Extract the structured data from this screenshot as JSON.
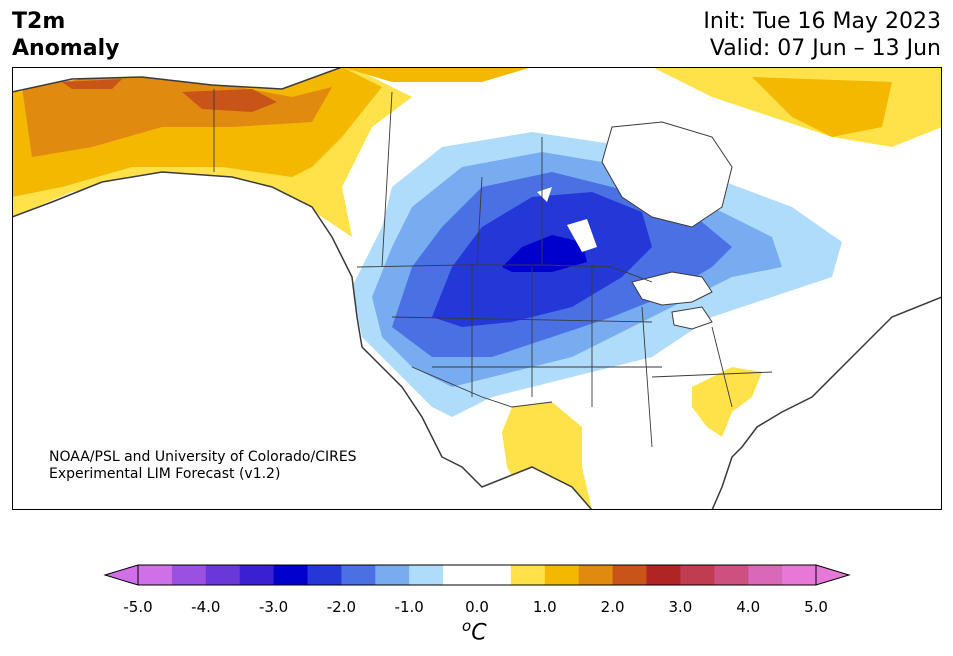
{
  "title": {
    "left_line1": "T2m",
    "left_line2": "Anomaly",
    "init": "Init: Tue 16 May 2023",
    "valid": "Valid: 07 Jun – 13 Jun"
  },
  "credit": {
    "line1": "NOAA/PSL and University of Colorado/CIRES",
    "line2": "Experimental LIM Forecast (v1.2)"
  },
  "map": {
    "region": "North America",
    "colors": {
      "ocean": "#ffffff",
      "coast": "#3a3a3a"
    }
  },
  "colorbar": {
    "unit_base": "C",
    "unit_sup": "o",
    "ticks": [
      "-5.0",
      "-4.0",
      "-3.0",
      "-2.0",
      "-1.0",
      "0.0",
      "1.0",
      "2.0",
      "3.0",
      "4.0",
      "5.0"
    ],
    "colors": [
      "#d070e8",
      "#9a50e0",
      "#6a38d8",
      "#3a20d0",
      "#0000cc",
      "#2438d8",
      "#4a70e4",
      "#78acf0",
      "#b0dcfc",
      "#ffffff",
      "#ffffff",
      "#ffe24a",
      "#f4b800",
      "#e08a10",
      "#c85418",
      "#b02424",
      "#c03c50",
      "#cc5080",
      "#d868b8",
      "#e878d8"
    ],
    "under_color": "#d070e8",
    "over_color": "#e878d8"
  }
}
